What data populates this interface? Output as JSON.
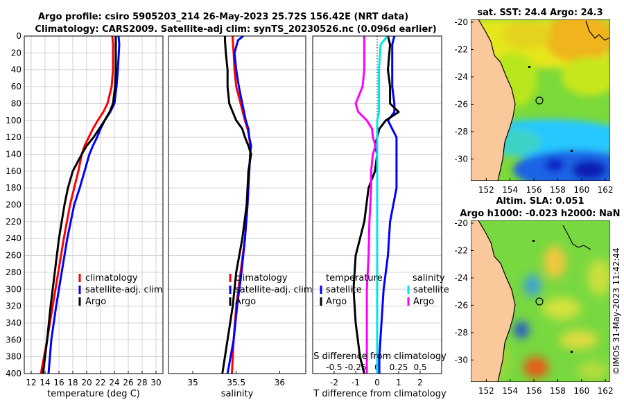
{
  "title": {
    "line1": "Argo profile: csiro 5905203_214 26-May-2023 25.72S 156.42E (NRT data)",
    "line2": "Climatology: CARS2009. Satellite-adj clim: synTS_20230526.nc (0.096d earlier)"
  },
  "depth_axis": {
    "ylim": [
      0,
      400
    ],
    "ticks": [
      "0",
      "20",
      "40",
      "60",
      "80",
      "100",
      "120",
      "140",
      "160",
      "180",
      "200",
      "220",
      "240",
      "260",
      "280",
      "300",
      "320",
      "340",
      "360",
      "380",
      "400"
    ]
  },
  "chart_data": [
    {
      "id": "temperature",
      "type": "line",
      "xlabel": "temperature (deg C)",
      "xlim": [
        11,
        31
      ],
      "ylim": [
        400,
        0
      ],
      "xticks": [
        "12",
        "14",
        "16",
        "18",
        "20",
        "22",
        "24",
        "26",
        "28",
        "30"
      ],
      "depth": [
        0,
        10,
        40,
        60,
        80,
        90,
        100,
        110,
        120,
        130,
        140,
        160,
        180,
        200,
        240,
        280,
        320,
        360,
        400
      ],
      "series": [
        {
          "name": "climatology",
          "color": "#ff0000",
          "values": [
            23.7,
            23.8,
            23.8,
            23.6,
            23.0,
            22.4,
            21.6,
            20.9,
            20.3,
            19.7,
            19.3,
            18.8,
            18.2,
            17.6,
            16.7,
            15.9,
            15.1,
            14.3,
            13.4
          ]
        },
        {
          "name": "satellite-adj. clim",
          "color": "#0000ff",
          "values": [
            24.6,
            24.7,
            24.5,
            24.3,
            24.0,
            23.4,
            22.6,
            22.0,
            21.5,
            20.9,
            20.4,
            19.7,
            19.0,
            18.2,
            17.2,
            16.4,
            15.6,
            14.9,
            14.5
          ]
        },
        {
          "name": "Argo",
          "color": "#000000",
          "values": [
            24.2,
            24.2,
            24.2,
            24.1,
            23.8,
            23.3,
            22.6,
            21.8,
            21.0,
            20.0,
            19.3,
            18.0,
            17.3,
            16.8,
            16.0,
            15.4,
            14.8,
            14.3,
            13.7
          ]
        }
      ],
      "legend": [
        "climatology",
        "satellite-adj. clim",
        "Argo"
      ]
    },
    {
      "id": "salinity",
      "type": "line",
      "xlabel": "salinity",
      "xlim": [
        34.72,
        36.3
      ],
      "ylim": [
        400,
        0
      ],
      "xticks": [
        "35",
        "35.5",
        "36"
      ],
      "depth": [
        0,
        5,
        20,
        40,
        60,
        80,
        100,
        110,
        120,
        130,
        140,
        160,
        200,
        240,
        280,
        320,
        360,
        400
      ],
      "series": [
        {
          "name": "climatology",
          "color": "#ff0000",
          "values": [
            35.46,
            35.46,
            35.47,
            35.48,
            35.5,
            35.55,
            35.6,
            35.63,
            35.65,
            35.66,
            35.66,
            35.65,
            35.63,
            35.6,
            35.55,
            35.5,
            35.47,
            35.45
          ]
        },
        {
          "name": "satellite-adj. clim",
          "color": "#0000ff",
          "values": [
            35.58,
            35.52,
            35.48,
            35.5,
            35.53,
            35.57,
            35.61,
            35.64,
            35.65,
            35.67,
            35.66,
            35.65,
            35.63,
            35.6,
            35.56,
            35.51,
            35.47,
            35.4
          ]
        },
        {
          "name": "Argo",
          "color": "#000000",
          "values": [
            35.37,
            35.37,
            35.38,
            35.4,
            35.4,
            35.42,
            35.5,
            35.57,
            35.6,
            35.64,
            35.67,
            35.64,
            35.62,
            35.57,
            35.5,
            35.46,
            35.4,
            35.34
          ]
        }
      ],
      "legend": [
        "climatology",
        "satellite-adj. clim",
        "Argo"
      ]
    },
    {
      "id": "differences",
      "type": "line",
      "xlabel": "T difference from climatology",
      "xlabel_top": "S difference from climatology",
      "xlim": [
        -3,
        3
      ],
      "s_scale": 0.25,
      "ylim": [
        400,
        0
      ],
      "xticks": [
        "-2",
        "-1",
        "0",
        "1",
        "2"
      ],
      "xticks_top": [
        "-0.5",
        "-0.25",
        "0",
        "0.25",
        "0.5"
      ],
      "depth": [
        0,
        10,
        40,
        60,
        80,
        90,
        100,
        110,
        120,
        130,
        140,
        160,
        180,
        220,
        260,
        300,
        340,
        380,
        400
      ],
      "series": [
        {
          "name": "T satellite",
          "group": "temperature",
          "color": "#0000ff",
          "values": [
            0.8,
            0.7,
            0.7,
            0.7,
            0.8,
            0.8,
            0.5,
            0.7,
            0.9,
            0.9,
            0.9,
            0.9,
            0.9,
            0.6,
            0.5,
            0.3,
            0.2,
            0.1,
            0.1
          ]
        },
        {
          "name": "T Argo",
          "group": "temperature",
          "color": "#000000",
          "values": [
            0.5,
            0.6,
            0.5,
            0.6,
            0.6,
            1.0,
            0.4,
            0.1,
            0.0,
            -0.1,
            0.0,
            -0.1,
            -0.4,
            -0.6,
            -1.0,
            -1.1,
            -1.0,
            -0.8,
            -0.6
          ]
        },
        {
          "name": "S satellite",
          "group": "salinity",
          "color": "#00e5ee",
          "values": [
            0.12,
            0.04,
            0.02,
            0.02,
            0.02,
            0.02,
            0.0,
            0.0,
            0.0,
            0.0,
            0.0,
            0.0,
            0.0,
            0.0,
            0.0,
            0.0,
            0.0,
            0.0,
            0.0
          ]
        },
        {
          "name": "S Argo",
          "group": "salinity",
          "color": "#ff00ff",
          "values": [
            -0.15,
            -0.15,
            -0.15,
            -0.17,
            -0.25,
            -0.22,
            -0.12,
            -0.06,
            -0.05,
            -0.02,
            -0.05,
            -0.07,
            -0.07,
            -0.09,
            -0.1,
            -0.12,
            -0.12,
            -0.12,
            -0.12
          ]
        }
      ],
      "legend": {
        "left_header": "temperature",
        "right_header": "salinity",
        "left": [
          "satellite",
          "Argo"
        ],
        "right": [
          "satellite",
          "Argo"
        ]
      }
    }
  ],
  "maps": [
    {
      "id": "sst-map",
      "title": "sat. SST: 24.4 Argo: 24.3",
      "lon_ticks": [
        "152",
        "154",
        "156",
        "158",
        "160",
        "162"
      ],
      "lat_ticks": [
        "-20",
        "-22",
        "-24",
        "-26",
        "-28",
        "-30"
      ]
    },
    {
      "id": "sla-map",
      "title_line1": "Altim. SLA: 0.051",
      "title_line2": "Argo h1000: -0.023 h2000: NaN",
      "lon_ticks": [
        "152",
        "154",
        "156",
        "158",
        "160",
        "162"
      ],
      "lat_ticks": [
        "-20",
        "-22",
        "-24",
        "-26",
        "-28",
        "-30"
      ]
    }
  ],
  "stamp": "©IMOS 31-May-2023 11:42:44",
  "colors": {
    "land": "#f9c89b",
    "grid": "#d0d0d0"
  }
}
